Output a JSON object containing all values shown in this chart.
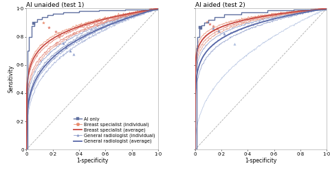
{
  "title1": "AI unaided (test 1)",
  "title2": "AI aided (test 2)",
  "xlabel": "1-specificity",
  "ylabel": "Sensitivity",
  "xticks": [
    0,
    0.2,
    0.4,
    0.6,
    0.8,
    1.0
  ],
  "yticks": [
    0,
    0.2,
    0.4,
    0.6,
    0.8,
    1.0
  ],
  "xticklabels": [
    "0",
    "0·2",
    "0·4",
    "0·6",
    "0·8",
    "1·0"
  ],
  "yticklabels": [
    "0",
    "0·2",
    "0·4",
    "0·6",
    "0·8",
    "1·0"
  ],
  "ai_color": "#6070a0",
  "bs_ind_colors": [
    "#e8896a",
    "#e07060",
    "#d86858",
    "#e09078"
  ],
  "bs_avg_color": "#c84840",
  "gr_ind_colors": [
    "#8898c8",
    "#7888b8",
    "#8898c0",
    "#9aa8d0"
  ],
  "gr_avg_color": "#5868a8",
  "gr_outlier_color": "#b0c0e0",
  "diag_color": "#aaaaaa",
  "background_color": "#ffffff",
  "title_fontsize": 6.5,
  "label_fontsize": 5.5,
  "tick_fontsize": 5,
  "legend_fontsize": 4.8
}
